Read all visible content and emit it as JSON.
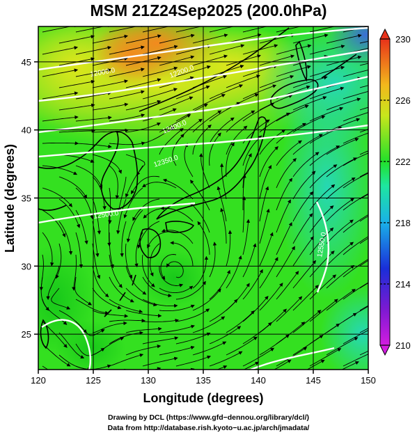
{
  "title": "MSM 21Z24Sep2025 (200.0hPa)",
  "axes": {
    "xlabel": "Longitude (degrees)",
    "ylabel": "Latitude  (degrees)",
    "x_ticks": [
      "120",
      "125",
      "130",
      "135",
      "140",
      "145",
      "150"
    ],
    "y_ticks": [
      "25",
      "30",
      "35",
      "40",
      "45"
    ]
  },
  "map_data": {
    "type": "heatmap",
    "field": "temperature",
    "extent": {
      "lon": [
        120,
        150
      ],
      "lat": [
        22.4,
        47.6
      ]
    },
    "color_range": [
      210,
      230
    ],
    "contour_labels": [
      "12000.0",
      "12200.0",
      "12400.0",
      "12350.0",
      "12500.0",
      "12550.0"
    ],
    "colors": {
      "orange": "#f58a1e",
      "yellow": "#d8e61c",
      "green": "#2ee21a",
      "aqua": "#26d6a4",
      "blue": "#3a7ad6"
    }
  },
  "colorbar": {
    "min": 210,
    "max": 230,
    "ticks": [
      "230",
      "226",
      "222",
      "218",
      "214",
      "210"
    ]
  },
  "credits": [
    "Drawing by DCL (https://www.gfd−dennou.org/library/dcl/)",
    "Data from http://database.rish.kyoto−u.ac.jp/arch/jmadata/"
  ]
}
